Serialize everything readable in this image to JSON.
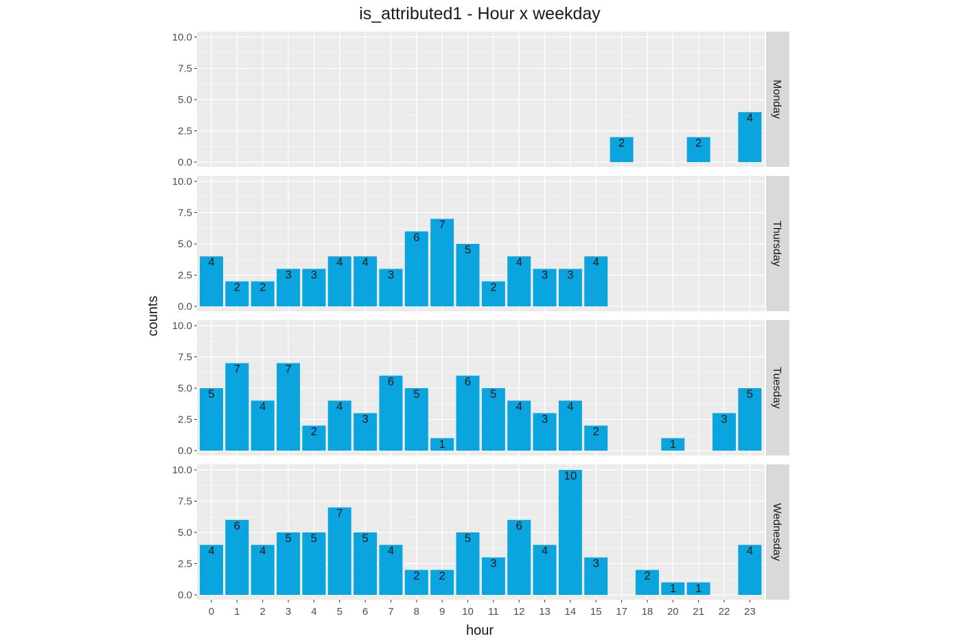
{
  "chart_data": {
    "type": "bar",
    "title": "is_attributed1 - Hour x weekday",
    "xlabel": "hour",
    "ylabel": "counts",
    "categories": [
      "0",
      "1",
      "2",
      "3",
      "4",
      "5",
      "6",
      "7",
      "8",
      "9",
      "10",
      "11",
      "12",
      "13",
      "14",
      "15",
      "17",
      "18",
      "20",
      "21",
      "22",
      "23"
    ],
    "ylim": [
      0,
      10.4
    ],
    "yticks": [
      "0.0",
      "2.5",
      "5.0",
      "7.5",
      "10.0"
    ],
    "bar_color": "#0AA5DE",
    "panel_bg": "#EBEBEB",
    "strip_bg": "#D9D9D9",
    "grid_color": "#FFFFFF",
    "facets": [
      {
        "name": "Monday",
        "points": [
          {
            "hour": "17",
            "value": 2
          },
          {
            "hour": "21",
            "value": 2
          },
          {
            "hour": "23",
            "value": 4
          }
        ]
      },
      {
        "name": "Thursday",
        "points": [
          {
            "hour": "0",
            "value": 4
          },
          {
            "hour": "1",
            "value": 2
          },
          {
            "hour": "2",
            "value": 2
          },
          {
            "hour": "3",
            "value": 3
          },
          {
            "hour": "4",
            "value": 3
          },
          {
            "hour": "5",
            "value": 4
          },
          {
            "hour": "6",
            "value": 4
          },
          {
            "hour": "7",
            "value": 3
          },
          {
            "hour": "8",
            "value": 6
          },
          {
            "hour": "9",
            "value": 7
          },
          {
            "hour": "10",
            "value": 5
          },
          {
            "hour": "11",
            "value": 2
          },
          {
            "hour": "12",
            "value": 4
          },
          {
            "hour": "13",
            "value": 3
          },
          {
            "hour": "14",
            "value": 3
          },
          {
            "hour": "15",
            "value": 4
          }
        ]
      },
      {
        "name": "Tuesday",
        "points": [
          {
            "hour": "0",
            "value": 5
          },
          {
            "hour": "1",
            "value": 7
          },
          {
            "hour": "2",
            "value": 4
          },
          {
            "hour": "3",
            "value": 7
          },
          {
            "hour": "4",
            "value": 2
          },
          {
            "hour": "5",
            "value": 4
          },
          {
            "hour": "6",
            "value": 3
          },
          {
            "hour": "7",
            "value": 6
          },
          {
            "hour": "8",
            "value": 5
          },
          {
            "hour": "9",
            "value": 1
          },
          {
            "hour": "10",
            "value": 6
          },
          {
            "hour": "11",
            "value": 5
          },
          {
            "hour": "12",
            "value": 4
          },
          {
            "hour": "13",
            "value": 3
          },
          {
            "hour": "14",
            "value": 4
          },
          {
            "hour": "15",
            "value": 2
          },
          {
            "hour": "20",
            "value": 1
          },
          {
            "hour": "22",
            "value": 3
          },
          {
            "hour": "23",
            "value": 5
          }
        ]
      },
      {
        "name": "Wednesday",
        "points": [
          {
            "hour": "0",
            "value": 4
          },
          {
            "hour": "1",
            "value": 6
          },
          {
            "hour": "2",
            "value": 4
          },
          {
            "hour": "3",
            "value": 5
          },
          {
            "hour": "4",
            "value": 5
          },
          {
            "hour": "5",
            "value": 7
          },
          {
            "hour": "6",
            "value": 5
          },
          {
            "hour": "7",
            "value": 4
          },
          {
            "hour": "8",
            "value": 2
          },
          {
            "hour": "9",
            "value": 2
          },
          {
            "hour": "10",
            "value": 5
          },
          {
            "hour": "11",
            "value": 3
          },
          {
            "hour": "12",
            "value": 6
          },
          {
            "hour": "13",
            "value": 4
          },
          {
            "hour": "14",
            "value": 10
          },
          {
            "hour": "15",
            "value": 3
          },
          {
            "hour": "18",
            "value": 2
          },
          {
            "hour": "20",
            "value": 1
          },
          {
            "hour": "21",
            "value": 1
          },
          {
            "hour": "23",
            "value": 4
          }
        ]
      }
    ]
  }
}
